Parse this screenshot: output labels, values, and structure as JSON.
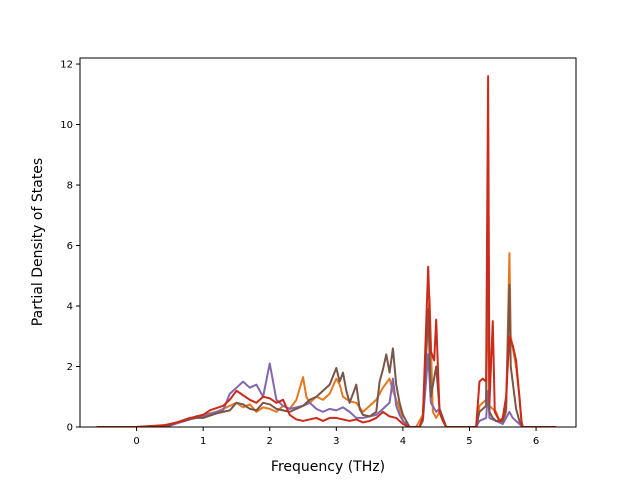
{
  "chart_data": {
    "type": "line",
    "xlabel": "Frequency (THz)",
    "ylabel": "Partial Density of States",
    "xlim": [
      -0.85,
      6.6
    ],
    "ylim": [
      0,
      12.2
    ],
    "xticks": [
      "0",
      "1",
      "2",
      "3",
      "4",
      "5",
      "6"
    ],
    "yticks": [
      "0",
      "2",
      "4",
      "6",
      "8",
      "10",
      "12"
    ],
    "grid": false,
    "series": [
      {
        "color": "#e6781e",
        "points": [
          [
            -0.6,
            0
          ],
          [
            0,
            0
          ],
          [
            0.5,
            0.08
          ],
          [
            0.8,
            0.3
          ],
          [
            1.0,
            0.4
          ],
          [
            1.2,
            0.5
          ],
          [
            1.4,
            0.7
          ],
          [
            1.5,
            0.8
          ],
          [
            1.6,
            0.65
          ],
          [
            1.7,
            0.75
          ],
          [
            1.8,
            0.5
          ],
          [
            1.9,
            0.65
          ],
          [
            2.0,
            0.6
          ],
          [
            2.1,
            0.5
          ],
          [
            2.2,
            0.7
          ],
          [
            2.3,
            0.6
          ],
          [
            2.4,
            0.9
          ],
          [
            2.5,
            1.65
          ],
          [
            2.55,
            1.0
          ],
          [
            2.6,
            0.8
          ],
          [
            2.7,
            1.0
          ],
          [
            2.8,
            0.9
          ],
          [
            2.9,
            1.1
          ],
          [
            3.0,
            1.6
          ],
          [
            3.05,
            1.4
          ],
          [
            3.1,
            1.0
          ],
          [
            3.2,
            0.85
          ],
          [
            3.3,
            0.8
          ],
          [
            3.4,
            0.5
          ],
          [
            3.5,
            0.7
          ],
          [
            3.6,
            0.9
          ],
          [
            3.7,
            1.3
          ],
          [
            3.8,
            1.6
          ],
          [
            3.85,
            1.2
          ],
          [
            3.9,
            0.9
          ],
          [
            3.95,
            0.6
          ],
          [
            4.0,
            0.2
          ],
          [
            4.1,
            0.0
          ],
          [
            4.18,
            0.0
          ],
          [
            4.2,
            0.0
          ],
          [
            4.3,
            0.4
          ],
          [
            4.4,
            4.3
          ],
          [
            4.45,
            0.5
          ],
          [
            4.5,
            0.3
          ],
          [
            4.55,
            0.5
          ],
          [
            4.6,
            0.2
          ],
          [
            4.65,
            0.0
          ],
          [
            5.1,
            0.0
          ],
          [
            5.15,
            0.7
          ],
          [
            5.2,
            0.8
          ],
          [
            5.25,
            0.9
          ],
          [
            5.28,
            5.2
          ],
          [
            5.3,
            0.7
          ],
          [
            5.35,
            0.6
          ],
          [
            5.4,
            0.5
          ],
          [
            5.45,
            0.2
          ],
          [
            5.5,
            0.15
          ],
          [
            5.55,
            0.5
          ],
          [
            5.6,
            5.75
          ],
          [
            5.62,
            3.0
          ],
          [
            5.7,
            2.0
          ],
          [
            5.75,
            1.0
          ],
          [
            5.78,
            0.2
          ],
          [
            5.8,
            0
          ],
          [
            6.3,
            0
          ]
        ]
      },
      {
        "color": "#8068b0",
        "points": [
          [
            -0.6,
            0
          ],
          [
            0,
            0
          ],
          [
            0.5,
            0.05
          ],
          [
            0.8,
            0.25
          ],
          [
            1.0,
            0.35
          ],
          [
            1.2,
            0.5
          ],
          [
            1.3,
            0.55
          ],
          [
            1.4,
            1.1
          ],
          [
            1.5,
            1.3
          ],
          [
            1.6,
            1.5
          ],
          [
            1.7,
            1.3
          ],
          [
            1.8,
            1.4
          ],
          [
            1.9,
            1.0
          ],
          [
            2.0,
            2.1
          ],
          [
            2.05,
            1.5
          ],
          [
            2.1,
            0.9
          ],
          [
            2.2,
            0.7
          ],
          [
            2.3,
            0.6
          ],
          [
            2.5,
            0.7
          ],
          [
            2.6,
            0.8
          ],
          [
            2.7,
            0.6
          ],
          [
            2.8,
            0.5
          ],
          [
            2.9,
            0.6
          ],
          [
            3.0,
            0.55
          ],
          [
            3.1,
            0.65
          ],
          [
            3.2,
            0.5
          ],
          [
            3.3,
            0.3
          ],
          [
            3.4,
            0.3
          ],
          [
            3.5,
            0.35
          ],
          [
            3.6,
            0.4
          ],
          [
            3.7,
            0.6
          ],
          [
            3.8,
            0.8
          ],
          [
            3.85,
            1.6
          ],
          [
            3.9,
            0.7
          ],
          [
            3.95,
            0.4
          ],
          [
            4.0,
            0.2
          ],
          [
            4.1,
            0.0
          ],
          [
            4.25,
            0.0
          ],
          [
            4.3,
            0.2
          ],
          [
            4.38,
            2.4
          ],
          [
            4.42,
            0.8
          ],
          [
            4.5,
            0.5
          ],
          [
            4.55,
            0.6
          ],
          [
            4.6,
            0.3
          ],
          [
            4.65,
            0.0
          ],
          [
            5.1,
            0.0
          ],
          [
            5.15,
            0.2
          ],
          [
            5.2,
            0.25
          ],
          [
            5.25,
            0.3
          ],
          [
            5.28,
            1.2
          ],
          [
            5.3,
            0.3
          ],
          [
            5.4,
            0.2
          ],
          [
            5.5,
            0.1
          ],
          [
            5.55,
            0.3
          ],
          [
            5.6,
            0.5
          ],
          [
            5.65,
            0.3
          ],
          [
            5.75,
            0.1
          ],
          [
            5.8,
            0
          ],
          [
            6.3,
            0
          ]
        ]
      },
      {
        "color": "#7a5548",
        "points": [
          [
            -0.6,
            0
          ],
          [
            0,
            0
          ],
          [
            0.5,
            0.06
          ],
          [
            0.8,
            0.3
          ],
          [
            1.0,
            0.3
          ],
          [
            1.2,
            0.45
          ],
          [
            1.4,
            0.55
          ],
          [
            1.5,
            0.8
          ],
          [
            1.6,
            0.75
          ],
          [
            1.7,
            0.6
          ],
          [
            1.8,
            0.55
          ],
          [
            1.9,
            0.8
          ],
          [
            2.0,
            0.75
          ],
          [
            2.1,
            0.6
          ],
          [
            2.2,
            0.55
          ],
          [
            2.3,
            0.5
          ],
          [
            2.4,
            0.6
          ],
          [
            2.5,
            0.7
          ],
          [
            2.6,
            0.9
          ],
          [
            2.7,
            1.0
          ],
          [
            2.8,
            1.2
          ],
          [
            2.9,
            1.4
          ],
          [
            3.0,
            1.95
          ],
          [
            3.05,
            1.5
          ],
          [
            3.1,
            1.8
          ],
          [
            3.15,
            1.2
          ],
          [
            3.2,
            0.8
          ],
          [
            3.3,
            1.4
          ],
          [
            3.35,
            0.6
          ],
          [
            3.4,
            0.4
          ],
          [
            3.5,
            0.35
          ],
          [
            3.6,
            0.5
          ],
          [
            3.65,
            1.5
          ],
          [
            3.7,
            1.9
          ],
          [
            3.75,
            2.4
          ],
          [
            3.8,
            1.8
          ],
          [
            3.85,
            2.6
          ],
          [
            3.9,
            1.4
          ],
          [
            3.95,
            0.8
          ],
          [
            4.0,
            0.4
          ],
          [
            4.1,
            0.0
          ],
          [
            4.25,
            0.0
          ],
          [
            4.3,
            0.3
          ],
          [
            4.38,
            3.9
          ],
          [
            4.42,
            1.0
          ],
          [
            4.5,
            2.0
          ],
          [
            4.55,
            0.6
          ],
          [
            4.6,
            0.3
          ],
          [
            4.65,
            0.0
          ],
          [
            5.1,
            0.0
          ],
          [
            5.15,
            0.5
          ],
          [
            5.2,
            0.6
          ],
          [
            5.25,
            0.7
          ],
          [
            5.28,
            9.0
          ],
          [
            5.3,
            0.5
          ],
          [
            5.35,
            0.3
          ],
          [
            5.4,
            0.2
          ],
          [
            5.5,
            0.2
          ],
          [
            5.55,
            0.6
          ],
          [
            5.6,
            4.7
          ],
          [
            5.62,
            2.0
          ],
          [
            5.7,
            0.6
          ],
          [
            5.75,
            0.2
          ],
          [
            5.8,
            0
          ],
          [
            6.3,
            0
          ]
        ]
      },
      {
        "color": "#cc2a1a",
        "points": [
          [
            -0.6,
            0
          ],
          [
            0,
            0
          ],
          [
            0.4,
            0.05
          ],
          [
            0.7,
            0.2
          ],
          [
            0.9,
            0.35
          ],
          [
            1.0,
            0.4
          ],
          [
            1.1,
            0.55
          ],
          [
            1.3,
            0.7
          ],
          [
            1.4,
            0.9
          ],
          [
            1.5,
            1.2
          ],
          [
            1.6,
            1.05
          ],
          [
            1.7,
            0.9
          ],
          [
            1.8,
            0.8
          ],
          [
            1.9,
            1.0
          ],
          [
            2.0,
            0.95
          ],
          [
            2.1,
            0.8
          ],
          [
            2.2,
            0.9
          ],
          [
            2.3,
            0.4
          ],
          [
            2.4,
            0.25
          ],
          [
            2.5,
            0.2
          ],
          [
            2.6,
            0.25
          ],
          [
            2.7,
            0.3
          ],
          [
            2.8,
            0.2
          ],
          [
            2.9,
            0.3
          ],
          [
            3.0,
            0.3
          ],
          [
            3.1,
            0.25
          ],
          [
            3.2,
            0.2
          ],
          [
            3.3,
            0.25
          ],
          [
            3.4,
            0.15
          ],
          [
            3.5,
            0.2
          ],
          [
            3.6,
            0.3
          ],
          [
            3.7,
            0.5
          ],
          [
            3.8,
            0.35
          ],
          [
            3.9,
            0.3
          ],
          [
            4.0,
            0.1
          ],
          [
            4.1,
            0.0
          ],
          [
            4.25,
            0.0
          ],
          [
            4.3,
            0.3
          ],
          [
            4.38,
            5.3
          ],
          [
            4.42,
            2.5
          ],
          [
            4.47,
            2.2
          ],
          [
            4.5,
            3.55
          ],
          [
            4.55,
            0.5
          ],
          [
            4.6,
            0.2
          ],
          [
            4.65,
            0.0
          ],
          [
            5.1,
            0.0
          ],
          [
            5.15,
            1.5
          ],
          [
            5.2,
            1.6
          ],
          [
            5.25,
            1.5
          ],
          [
            5.28,
            11.6
          ],
          [
            5.3,
            0.8
          ],
          [
            5.35,
            3.5
          ],
          [
            5.38,
            0.5
          ],
          [
            5.45,
            0.2
          ],
          [
            5.5,
            0.3
          ],
          [
            5.55,
            1.0
          ],
          [
            5.6,
            3.0
          ],
          [
            5.65,
            2.7
          ],
          [
            5.7,
            2.2
          ],
          [
            5.75,
            1.0
          ],
          [
            5.78,
            0.2
          ],
          [
            5.8,
            0
          ],
          [
            6.3,
            0
          ]
        ]
      }
    ]
  }
}
